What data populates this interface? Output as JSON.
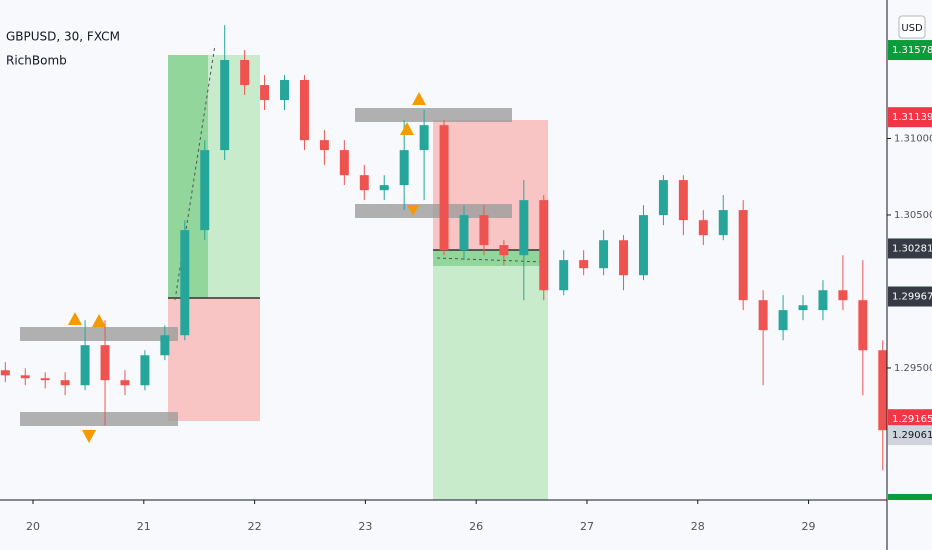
{
  "chart_data": {
    "type": "candlestick",
    "title": "GBPUSD, 30, FXCM",
    "subtitle": "RichBomb",
    "currency": "USD",
    "up_color": "#26a69a",
    "down_color": "#ef5350",
    "x": [
      -0.25,
      -0.07,
      0.11,
      0.29,
      0.47,
      0.65,
      0.83,
      1.01,
      1.19,
      1.37,
      1.55,
      1.73,
      1.91,
      2.09,
      2.27,
      2.45,
      2.63,
      2.81,
      2.99,
      3.17,
      3.35,
      3.53,
      3.71,
      3.89,
      4.07,
      4.25,
      4.43,
      4.61,
      4.79,
      4.97,
      5.15,
      5.33,
      5.51,
      5.69,
      5.87,
      6.05,
      6.23,
      6.41,
      6.59,
      6.77,
      6.95,
      7.13,
      7.31,
      7.49,
      7.67
    ],
    "open": [
      1.29485,
      1.29452,
      1.29433,
      1.2942,
      1.29387,
      1.29649,
      1.2942,
      1.29387,
      1.29583,
      1.29714,
      1.30401,
      1.30924,
      1.31513,
      1.31349,
      1.31251,
      1.31382,
      1.30989,
      1.30924,
      1.3076,
      1.30662,
      1.30695,
      1.30924,
      1.31087,
      1.3027,
      1.30499,
      1.30303,
      1.30237,
      1.30597,
      1.30008,
      1.30205,
      1.30152,
      1.30335,
      1.30106,
      1.30499,
      1.30728,
      1.30466,
      1.30368,
      1.30532,
      1.29943,
      1.29747,
      1.29878,
      1.29878,
      1.30008,
      1.29943,
      1.29616
    ],
    "high": [
      1.29538,
      1.29498,
      1.29472,
      1.29472,
      1.29812,
      1.29812,
      1.29485,
      1.29616,
      1.29779,
      1.30466,
      1.30989,
      1.31741,
      1.31578,
      1.31414,
      1.31414,
      1.31414,
      1.31055,
      1.30989,
      1.30826,
      1.3076,
      1.3112,
      1.31186,
      1.3112,
      1.30564,
      1.30564,
      1.30335,
      1.30728,
      1.3063,
      1.3027,
      1.3027,
      1.30401,
      1.30368,
      1.30564,
      1.3076,
      1.3076,
      1.30532,
      1.3063,
      1.30597,
      1.30008,
      1.29976,
      1.29976,
      1.30074,
      1.30237,
      1.30205,
      1.29681
    ],
    "low": [
      1.29407,
      1.29387,
      1.29367,
      1.29322,
      1.29354,
      1.29125,
      1.29322,
      1.29354,
      1.29551,
      1.29681,
      1.30335,
      1.30859,
      1.31284,
      1.31186,
      1.31186,
      1.30924,
      1.30826,
      1.30695,
      1.30597,
      1.30597,
      1.30532,
      1.30597,
      1.30237,
      1.30205,
      1.30237,
      1.30172,
      1.29943,
      1.29943,
      1.29976,
      1.30106,
      1.30106,
      1.30008,
      1.30074,
      1.30433,
      1.30368,
      1.30303,
      1.30335,
      1.29878,
      1.29387,
      1.29681,
      1.29812,
      1.29812,
      1.29878,
      1.29322,
      1.28831
    ],
    "close": [
      1.29452,
      1.29433,
      1.2942,
      1.29387,
      1.29649,
      1.2942,
      1.29387,
      1.29583,
      1.29714,
      1.30401,
      1.30924,
      1.31513,
      1.31349,
      1.31251,
      1.31382,
      1.30989,
      1.30924,
      1.3076,
      1.30662,
      1.30695,
      1.30924,
      1.31087,
      1.3027,
      1.30499,
      1.30303,
      1.30237,
      1.30597,
      1.30008,
      1.30205,
      1.30152,
      1.30335,
      1.30106,
      1.30499,
      1.30728,
      1.30466,
      1.30368,
      1.30532,
      1.29943,
      1.29747,
      1.29878,
      1.2991,
      1.30008,
      1.29943,
      1.29616,
      1.29093
    ],
    "xlim": [
      -0.298,
      7.708
    ],
    "xticks": [
      {
        "value": 0,
        "label": "20"
      },
      {
        "value": 1,
        "label": "21"
      },
      {
        "value": 2,
        "label": "22"
      },
      {
        "value": 3,
        "label": "23"
      },
      {
        "value": 4,
        "label": "26"
      },
      {
        "value": 5,
        "label": "27"
      },
      {
        "value": 6,
        "label": "28"
      },
      {
        "value": 7,
        "label": "29"
      }
    ],
    "ylim": [
      1.28637,
      1.31905
    ],
    "yticks": [
      {
        "value": 1.295,
        "label": "1.29500"
      },
      {
        "value": 1.305,
        "label": "1.30500"
      },
      {
        "value": 1.31,
        "label": "1.31000"
      }
    ],
    "price_labels": [
      {
        "value": 1.31578,
        "color": "#089c3a",
        "text_color": "#ffffff"
      },
      {
        "value": 1.31139,
        "color": "#f23645",
        "text_color": "#ffffff"
      },
      {
        "value": 1.30281,
        "color": "#363a45",
        "text_color": "#ffffff"
      },
      {
        "value": 1.29967,
        "color": "#363a45",
        "text_color": "#ffffff"
      },
      {
        "value": 1.29165,
        "color": "#f23645",
        "text_color": "#ffffff"
      },
      {
        "value": 1.29061,
        "color": "#d1d4dc",
        "text_color": "#131722"
      }
    ]
  }
}
